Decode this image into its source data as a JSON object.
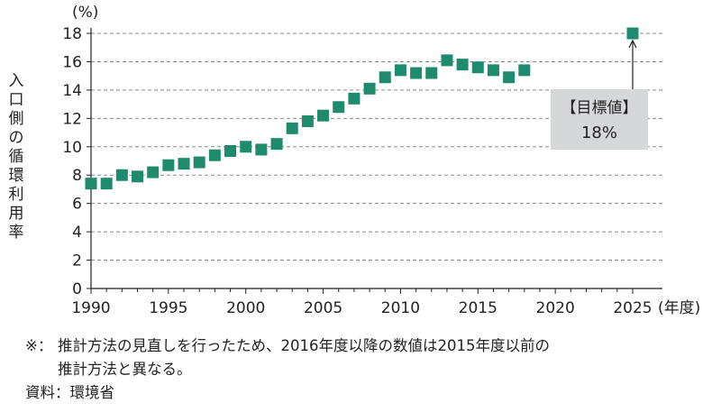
{
  "chart_data": {
    "type": "scatter",
    "ylabel": "入口側の循環利用率",
    "y_unit": "(%)",
    "x_unit": "(年度)",
    "xlim": [
      1990,
      2025
    ],
    "ylim": [
      0,
      18
    ],
    "x_ticks": [
      "1990",
      "1995",
      "2000",
      "2005",
      "2010",
      "2015",
      "2020",
      "2025"
    ],
    "y_ticks": [
      "0",
      "2",
      "4",
      "6",
      "8",
      "10",
      "12",
      "14",
      "16",
      "18"
    ],
    "grid": "horizontal dashed",
    "series": [
      {
        "x": [
          1990,
          1991,
          1992,
          1993,
          1994,
          1995,
          1996,
          1997,
          1998,
          1999,
          2000,
          2001,
          2002,
          2003,
          2004,
          2005,
          2006,
          2007,
          2008,
          2009,
          2010,
          2011,
          2012,
          2013,
          2014,
          2015,
          2016,
          2017,
          2018
        ],
        "values": [
          7.4,
          7.4,
          8.0,
          7.9,
          8.2,
          8.7,
          8.8,
          8.9,
          9.4,
          9.7,
          10.0,
          9.8,
          10.2,
          11.3,
          11.8,
          12.2,
          12.8,
          13.4,
          14.1,
          14.9,
          15.4,
          15.2,
          15.2,
          16.1,
          15.8,
          15.6,
          15.4,
          14.9,
          15.4
        ]
      }
    ],
    "target": {
      "x": 2025,
      "value": 18,
      "label": "【目標値】",
      "value_label": "18%"
    }
  },
  "colors": {
    "marker": "#1e8a6e",
    "target_box": "#d6d7d9",
    "grid": "#8a8a8a"
  },
  "notes": {
    "line1_mark": "※：",
    "line1": "推計方法の見直しを行ったため、2016年度以降の数値は2015年度以前の",
    "line2": "推計方法と異なる。",
    "source": "資料：環境省"
  }
}
